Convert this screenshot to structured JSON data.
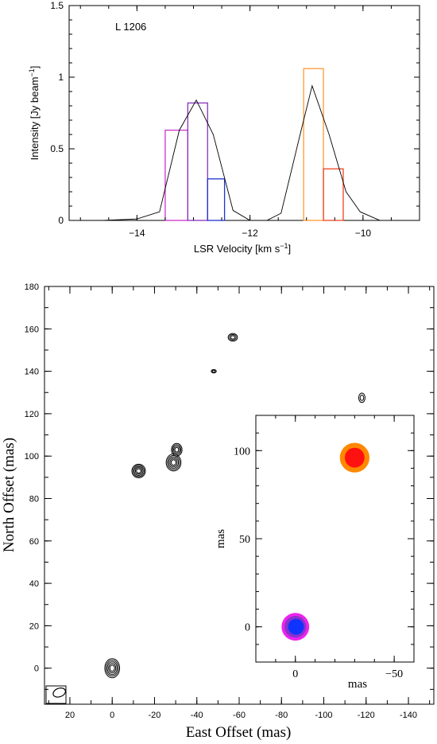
{
  "chart_data": [
    {
      "type": "line",
      "annotation": "L 1206",
      "xlabel_main": "LSR Velocity [km s",
      "xlabel_sup": "−1",
      "xlabel_end": "]",
      "ylabel_main": "Intensity [Jy beam",
      "ylabel_sup": "−1",
      "ylabel_end": "]",
      "xlim": [
        -15.2,
        -9.0
      ],
      "ylim": [
        0,
        1.5
      ],
      "xticks": [
        {
          "v": -14,
          "label": "−14"
        },
        {
          "v": -12,
          "label": "−12"
        },
        {
          "v": -10,
          "label": "−10"
        }
      ],
      "yticks": [
        {
          "v": 0,
          "label": "0"
        },
        {
          "v": 0.5,
          "label": "0.5"
        },
        {
          "v": 1,
          "label": "1"
        },
        {
          "v": 1.5,
          "label": "1.5"
        }
      ],
      "spectrum": {
        "x": [
          -14.6,
          -14.0,
          -13.6,
          -13.25,
          -12.95,
          -12.65,
          -12.3,
          -12.0,
          -11.7,
          -11.45,
          -11.1,
          -10.9,
          -10.6,
          -10.3,
          -10.05,
          -9.7,
          -9.0
        ],
        "y": [
          0.0,
          0.01,
          0.06,
          0.63,
          0.84,
          0.6,
          0.07,
          0.0,
          0.0,
          0.05,
          0.62,
          0.94,
          0.6,
          0.2,
          0.06,
          0.0,
          0.0
        ]
      },
      "bars": [
        {
          "x0": -13.5,
          "x1": -13.1,
          "y": 0.63,
          "color": "#cc33cc"
        },
        {
          "x0": -13.1,
          "x1": -12.75,
          "y": 0.82,
          "color": "#8833bb"
        },
        {
          "x0": -12.75,
          "x1": -12.45,
          "y": 0.29,
          "color": "#2233cc"
        },
        {
          "x0": -11.05,
          "x1": -10.7,
          "y": 1.06,
          "color": "#ff9933"
        },
        {
          "x0": -10.7,
          "x1": -10.35,
          "y": 0.36,
          "color": "#ee4422"
        }
      ]
    },
    {
      "type": "scatter",
      "xlabel": "East Offset (mas)",
      "ylabel": "North Offset (mas)",
      "xlim": [
        32,
        -152
      ],
      "ylim": [
        -17,
        180
      ],
      "xticks": [
        {
          "v": 20,
          "label": "20"
        },
        {
          "v": 0,
          "label": "0"
        },
        {
          "v": -20,
          "label": "-20"
        },
        {
          "v": -40,
          "label": "-40"
        },
        {
          "v": -60,
          "label": "-60"
        },
        {
          "v": -80,
          "label": "-80"
        },
        {
          "v": -100,
          "label": "-100"
        },
        {
          "v": -120,
          "label": "-120"
        },
        {
          "v": -140,
          "label": "-140"
        }
      ],
      "yticks": [
        {
          "v": 0,
          "label": "0"
        },
        {
          "v": 20,
          "label": "20"
        },
        {
          "v": 40,
          "label": "40"
        },
        {
          "v": 60,
          "label": "60"
        },
        {
          "v": 80,
          "label": "80"
        },
        {
          "v": 100,
          "label": "100"
        },
        {
          "v": 120,
          "label": "120"
        },
        {
          "v": 140,
          "label": "140"
        },
        {
          "v": 160,
          "label": "160"
        },
        {
          "v": 180,
          "label": "180"
        }
      ],
      "contour_sources": [
        {
          "x": 0,
          "y": 0,
          "rx": 3.5,
          "ry": 4.5,
          "levels": 5
        },
        {
          "x": -12.5,
          "y": 93,
          "rx": 3.2,
          "ry": 3.2,
          "levels": 5
        },
        {
          "x": -29,
          "y": 97,
          "rx": 3.5,
          "ry": 4.0,
          "levels": 5
        },
        {
          "x": -30.5,
          "y": 103,
          "rx": 2.5,
          "ry": 3.0,
          "levels": 4
        },
        {
          "x": -57,
          "y": 156,
          "rx": 2.2,
          "ry": 1.8,
          "levels": 3
        },
        {
          "x": -48,
          "y": 140,
          "rx": 1.2,
          "ry": 0.8,
          "levels": 2
        },
        {
          "x": -118,
          "y": 127.5,
          "rx": 1.5,
          "ry": 2.2,
          "levels": 2
        }
      ],
      "beam": {
        "x": 25,
        "y": -11.5,
        "rx": 3.0,
        "ry": 2.0
      }
    },
    {
      "type": "scatter",
      "xlabel": "mas",
      "ylabel": "mas",
      "xlim": [
        20,
        -60
      ],
      "ylim": [
        -20,
        120
      ],
      "xticks": [
        {
          "v": 0,
          "label": "0"
        },
        {
          "v": -50,
          "label": "−50"
        }
      ],
      "yticks": [
        {
          "v": 0,
          "label": "0"
        },
        {
          "v": 50,
          "label": "50"
        },
        {
          "v": 100,
          "label": "100"
        }
      ],
      "spots": [
        {
          "x": 0,
          "y": 0,
          "r": 7,
          "color": "#ee22ee"
        },
        {
          "x": 0,
          "y": 0,
          "r": 5.5,
          "color": "#8833cc"
        },
        {
          "x": -0.3,
          "y": 0,
          "r": 4,
          "color": "#1133ff"
        },
        {
          "x": -30,
          "y": 96,
          "r": 7.5,
          "color": "#ff8800"
        },
        {
          "x": -30,
          "y": 96,
          "r": 5,
          "color": "#ff1111"
        }
      ]
    }
  ]
}
